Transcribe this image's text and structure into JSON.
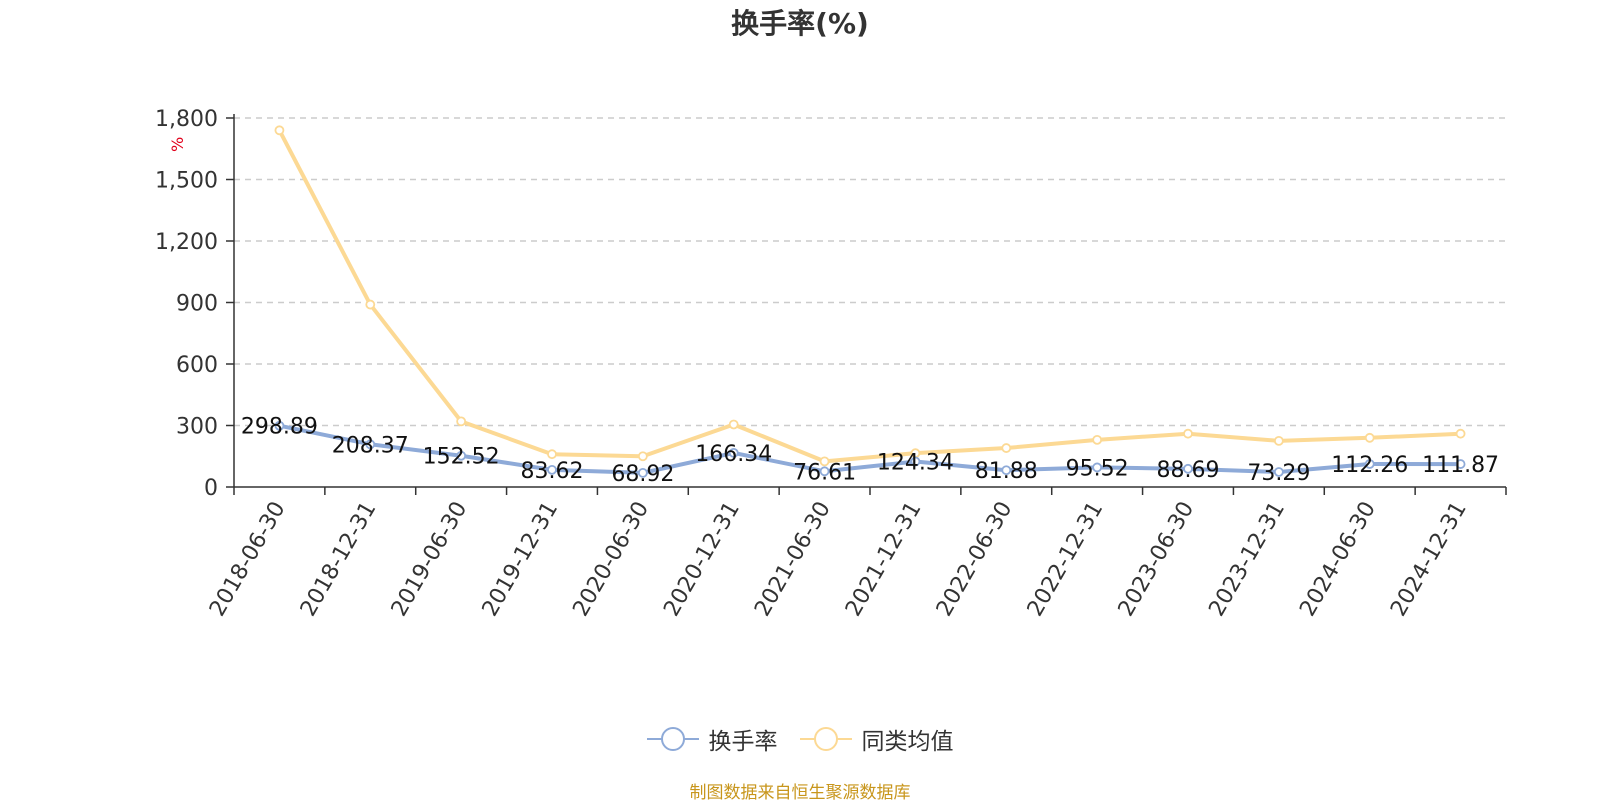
{
  "chart_data": {
    "type": "line",
    "title": "换手率(%)",
    "ylabel": "%",
    "ylim": [
      0,
      1800
    ],
    "yticks": [
      0,
      300,
      600,
      900,
      1200,
      1500,
      1800
    ],
    "ytick_labels": [
      "0",
      "300",
      "600",
      "900",
      "1,200",
      "1,500",
      "1,800"
    ],
    "categories": [
      "2018-06-30",
      "2018-12-31",
      "2019-06-30",
      "2019-12-31",
      "2020-06-30",
      "2020-12-31",
      "2021-06-30",
      "2021-12-31",
      "2022-06-30",
      "2022-12-31",
      "2023-06-30",
      "2023-12-31",
      "2024-06-30",
      "2024-12-31"
    ],
    "grid": true,
    "legend_position": "bottom",
    "series": [
      {
        "name": "换手率",
        "color": "#8eaad8",
        "values": [
          298.89,
          208.37,
          152.52,
          83.62,
          68.92,
          166.34,
          76.61,
          124.34,
          81.88,
          95.52,
          88.69,
          73.29,
          112.26,
          111.87
        ],
        "labels": [
          "298.89",
          "208.37",
          "152.52",
          "83.62",
          "68.92",
          "166.34",
          "76.61",
          "124.34",
          "81.88",
          "95.52",
          "88.69",
          "73.29",
          "112.26",
          "111.87"
        ]
      },
      {
        "name": "同类均值",
        "color": "#fcd994",
        "values": [
          1740,
          890,
          320,
          160,
          150,
          305,
          125,
          165,
          190,
          230,
          260,
          225,
          240,
          260
        ]
      }
    ]
  },
  "source": "制图数据来自恒生聚源数据库"
}
